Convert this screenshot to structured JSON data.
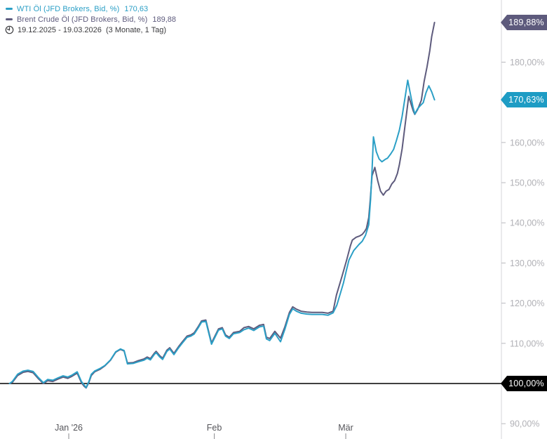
{
  "legend": {
    "series": [
      {
        "name": "WTI Öl (JFD Brokers, Bid, %)",
        "value": "170,63",
        "color": "#2b9fc6"
      },
      {
        "name": "Brent Crude Öl (JFD Brokers, Bid, %)",
        "value": "189,88",
        "color": "#5e5b7d"
      }
    ],
    "date_range": "19.12.2025 - 19.03.2026",
    "period_note": "(3 Monate, 1 Tag)"
  },
  "badges": {
    "brent": {
      "text": "189,88%",
      "value": 189.88,
      "color": "#5d5a7c"
    },
    "wti": {
      "text": "170,63%",
      "value": 170.63,
      "color": "#1e9cc4"
    },
    "base": {
      "text": "100,00%",
      "value": 100.0,
      "color": "#000000"
    }
  },
  "chart_data": {
    "type": "line",
    "title": "",
    "x_axis": {
      "start_date": "19.12.2025",
      "end_date": "19.03.2026",
      "total_days": 91,
      "tick_labels": [
        "Jan '26",
        "Feb",
        "Mär"
      ],
      "tick_days": [
        13,
        44,
        72
      ]
    },
    "y_axis": {
      "unit": "%",
      "baseline_value": 100,
      "range": [
        88,
        192
      ],
      "tick_values": [
        90,
        110,
        120,
        130,
        140,
        150,
        160,
        180
      ],
      "tick_labels": [
        "90,00%",
        "110,00%",
        "120,00%",
        "130,00%",
        "140,00%",
        "150,00%",
        "160,00%",
        "180,00%"
      ],
      "grid": false
    },
    "series": [
      {
        "name": "Brent Crude Öl (JFD Brokers, Bid, %)",
        "color": "#5e5b7d",
        "last_value": 189.88,
        "points": [
          [
            0.4,
            100.0
          ],
          [
            1.0,
            100.3
          ],
          [
            2.1,
            102.0
          ],
          [
            3.3,
            102.8
          ],
          [
            4.3,
            103.0
          ],
          [
            5.4,
            102.7
          ],
          [
            6.6,
            101.1
          ],
          [
            7.6,
            100.0
          ],
          [
            8.5,
            100.7
          ],
          [
            9.6,
            100.5
          ],
          [
            10.7,
            101.1
          ],
          [
            11.8,
            101.6
          ],
          [
            12.8,
            101.3
          ],
          [
            13.7,
            101.8
          ],
          [
            14.8,
            102.6
          ],
          [
            15.7,
            100.2
          ],
          [
            16.3,
            99.3
          ],
          [
            16.7,
            98.9
          ],
          [
            17.3,
            100.3
          ],
          [
            17.8,
            102.0
          ],
          [
            18.5,
            102.9
          ],
          [
            19.6,
            103.5
          ],
          [
            20.7,
            104.4
          ],
          [
            21.9,
            105.8
          ],
          [
            23.0,
            107.8
          ],
          [
            24.0,
            108.5
          ],
          [
            24.8,
            108.1
          ],
          [
            25.5,
            105.1
          ],
          [
            26.7,
            105.2
          ],
          [
            27.8,
            105.7
          ],
          [
            29.0,
            106.1
          ],
          [
            29.7,
            106.6
          ],
          [
            30.4,
            106.2
          ],
          [
            31.2,
            107.5
          ],
          [
            31.6,
            108.0
          ],
          [
            32.4,
            106.9
          ],
          [
            33.0,
            106.3
          ],
          [
            33.9,
            108.3
          ],
          [
            34.5,
            108.9
          ],
          [
            35.4,
            107.5
          ],
          [
            36.4,
            109.2
          ],
          [
            37.2,
            110.4
          ],
          [
            38.2,
            111.8
          ],
          [
            39.0,
            112.1
          ],
          [
            39.7,
            112.6
          ],
          [
            40.6,
            114.2
          ],
          [
            41.3,
            115.6
          ],
          [
            42.2,
            115.8
          ],
          [
            43.4,
            110.1
          ],
          [
            44.9,
            113.6
          ],
          [
            45.7,
            113.9
          ],
          [
            46.4,
            112.1
          ],
          [
            47.2,
            111.5
          ],
          [
            48.1,
            112.7
          ],
          [
            49.4,
            113.0
          ],
          [
            50.3,
            113.9
          ],
          [
            51.3,
            114.2
          ],
          [
            52.4,
            113.6
          ],
          [
            53.6,
            114.5
          ],
          [
            54.5,
            114.7
          ],
          [
            55.1,
            111.5
          ],
          [
            55.8,
            111.2
          ],
          [
            56.9,
            113.0
          ],
          [
            58.1,
            111.3
          ],
          [
            59.0,
            114.0
          ],
          [
            60.0,
            117.7
          ],
          [
            60.7,
            119.1
          ],
          [
            61.5,
            118.5
          ],
          [
            62.5,
            118.0
          ],
          [
            63.7,
            117.8
          ],
          [
            64.8,
            117.7
          ],
          [
            66.0,
            117.7
          ],
          [
            67.0,
            117.7
          ],
          [
            68.2,
            117.5
          ],
          [
            69.3,
            118.0
          ],
          [
            70.0,
            122.0
          ],
          [
            71.2,
            126.7
          ],
          [
            72.2,
            130.8
          ],
          [
            73.0,
            134.3
          ],
          [
            73.4,
            135.7
          ],
          [
            74.2,
            136.4
          ],
          [
            74.9,
            136.7
          ],
          [
            75.5,
            137.1
          ],
          [
            76.0,
            137.8
          ],
          [
            76.4,
            138.6
          ],
          [
            76.9,
            141.3
          ],
          [
            77.2,
            145.6
          ],
          [
            77.6,
            151.7
          ],
          [
            78.2,
            153.8
          ],
          [
            78.8,
            150.5
          ],
          [
            79.4,
            147.9
          ],
          [
            80.0,
            146.9
          ],
          [
            80.6,
            147.9
          ],
          [
            81.2,
            148.3
          ],
          [
            81.8,
            149.7
          ],
          [
            82.4,
            150.5
          ],
          [
            83.0,
            152.3
          ],
          [
            83.4,
            154.4
          ],
          [
            84.0,
            158.4
          ],
          [
            84.6,
            164.0
          ],
          [
            85.4,
            171.5
          ],
          [
            86.0,
            169.2
          ],
          [
            86.4,
            167.8
          ],
          [
            86.7,
            167.0
          ],
          [
            87.3,
            168.2
          ],
          [
            88.1,
            170.5
          ],
          [
            88.7,
            175.2
          ],
          [
            89.3,
            178.8
          ],
          [
            89.9,
            182.9
          ],
          [
            90.3,
            186.4
          ],
          [
            90.9,
            189.88
          ]
        ]
      },
      {
        "name": "WTI Öl (JFD Brokers, Bid, %)",
        "color": "#2b9fc6",
        "last_value": 170.63,
        "points": [
          [
            0.4,
            100.0
          ],
          [
            1.0,
            100.5
          ],
          [
            2.1,
            102.3
          ],
          [
            3.3,
            103.1
          ],
          [
            4.3,
            103.3
          ],
          [
            5.4,
            103.0
          ],
          [
            6.6,
            101.4
          ],
          [
            7.6,
            100.2
          ],
          [
            8.5,
            101.0
          ],
          [
            9.6,
            100.8
          ],
          [
            10.7,
            101.4
          ],
          [
            11.8,
            101.9
          ],
          [
            12.8,
            101.6
          ],
          [
            13.7,
            102.1
          ],
          [
            14.8,
            102.9
          ],
          [
            15.7,
            100.5
          ],
          [
            16.3,
            99.6
          ],
          [
            16.7,
            99.0
          ],
          [
            17.3,
            100.5
          ],
          [
            17.8,
            102.3
          ],
          [
            18.5,
            103.1
          ],
          [
            19.6,
            103.7
          ],
          [
            20.7,
            104.5
          ],
          [
            21.9,
            105.9
          ],
          [
            23.0,
            107.9
          ],
          [
            24.0,
            108.6
          ],
          [
            24.8,
            108.2
          ],
          [
            25.5,
            104.9
          ],
          [
            26.7,
            105.0
          ],
          [
            27.8,
            105.4
          ],
          [
            29.0,
            105.8
          ],
          [
            29.7,
            106.3
          ],
          [
            30.4,
            105.9
          ],
          [
            31.2,
            107.2
          ],
          [
            31.6,
            107.7
          ],
          [
            32.4,
            106.6
          ],
          [
            33.0,
            106.0
          ],
          [
            33.9,
            108.0
          ],
          [
            34.5,
            108.6
          ],
          [
            35.4,
            107.2
          ],
          [
            36.4,
            108.9
          ],
          [
            37.2,
            110.1
          ],
          [
            38.2,
            111.5
          ],
          [
            39.0,
            111.8
          ],
          [
            39.7,
            112.3
          ],
          [
            40.6,
            113.9
          ],
          [
            41.3,
            115.3
          ],
          [
            42.2,
            115.5
          ],
          [
            43.4,
            109.8
          ],
          [
            44.9,
            113.3
          ],
          [
            45.7,
            113.6
          ],
          [
            46.4,
            111.8
          ],
          [
            47.2,
            111.2
          ],
          [
            48.1,
            112.4
          ],
          [
            49.4,
            112.7
          ],
          [
            50.3,
            113.4
          ],
          [
            51.3,
            113.8
          ],
          [
            52.4,
            113.2
          ],
          [
            53.6,
            114.1
          ],
          [
            54.5,
            114.3
          ],
          [
            55.1,
            111.1
          ],
          [
            55.8,
            110.7
          ],
          [
            56.9,
            112.5
          ],
          [
            58.1,
            110.4
          ],
          [
            59.0,
            113.4
          ],
          [
            60.0,
            117.2
          ],
          [
            60.7,
            118.6
          ],
          [
            61.5,
            118.0
          ],
          [
            62.5,
            117.5
          ],
          [
            63.7,
            117.3
          ],
          [
            64.8,
            117.2
          ],
          [
            66.0,
            117.2
          ],
          [
            67.0,
            117.2
          ],
          [
            68.2,
            117.0
          ],
          [
            69.3,
            117.6
          ],
          [
            70.1,
            119.5
          ],
          [
            71.0,
            123.0
          ],
          [
            71.5,
            125.0
          ],
          [
            72.2,
            128.5
          ],
          [
            72.7,
            130.8
          ],
          [
            73.7,
            133.1
          ],
          [
            74.8,
            134.6
          ],
          [
            75.5,
            135.4
          ],
          [
            76.2,
            136.9
          ],
          [
            76.9,
            139.5
          ],
          [
            77.3,
            146.0
          ],
          [
            77.6,
            153.0
          ],
          [
            77.9,
            161.4
          ],
          [
            78.5,
            157.7
          ],
          [
            79.1,
            155.9
          ],
          [
            79.7,
            155.2
          ],
          [
            80.4,
            155.8
          ],
          [
            80.9,
            156.1
          ],
          [
            81.6,
            157.2
          ],
          [
            82.2,
            158.3
          ],
          [
            82.8,
            160.5
          ],
          [
            83.4,
            163.0
          ],
          [
            84.0,
            166.5
          ],
          [
            84.6,
            171.0
          ],
          [
            85.2,
            175.5
          ],
          [
            85.8,
            171.9
          ],
          [
            86.3,
            168.9
          ],
          [
            86.7,
            167.1
          ],
          [
            87.3,
            168.4
          ],
          [
            87.9,
            169.2
          ],
          [
            88.5,
            169.9
          ],
          [
            89.1,
            172.4
          ],
          [
            89.7,
            174.1
          ],
          [
            90.3,
            172.6
          ],
          [
            90.9,
            170.63
          ]
        ]
      }
    ],
    "legend_position": "top-left",
    "y_axis_position": "right"
  }
}
